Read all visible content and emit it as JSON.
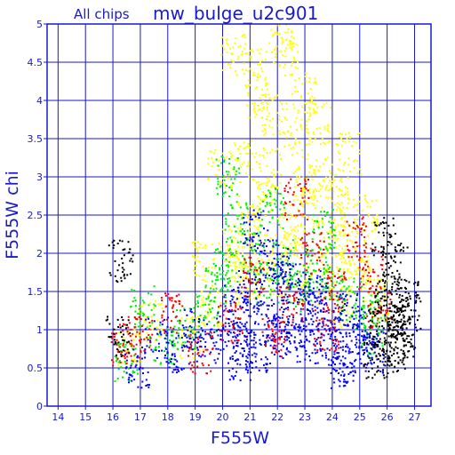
{
  "header": {
    "subtitle": "All chips",
    "title": "mw_bulge_u2c901"
  },
  "chart_data": {
    "type": "scatter",
    "xlabel": "F555W",
    "ylabel": "F555W chi",
    "xlim": [
      13.6,
      27.6
    ],
    "ylim": [
      0,
      5
    ],
    "x_ticks": [
      14,
      15,
      16,
      17,
      18,
      19,
      20,
      21,
      22,
      23,
      24,
      25,
      26,
      27
    ],
    "y_ticks": [
      0,
      0.5,
      1,
      1.5,
      2,
      2.5,
      3,
      3.5,
      4,
      4.5,
      5
    ],
    "x_tick_labels": [
      "14",
      "15",
      "16",
      "17",
      "18",
      "19",
      "20",
      "21",
      "22",
      "23",
      "24",
      "25",
      "26",
      "27"
    ],
    "y_tick_labels": [
      "0",
      "0.5",
      "1",
      "1.5",
      "2",
      "2.5",
      "3",
      "3.5",
      "4",
      "4.5",
      "5"
    ],
    "grid": true,
    "grid_color": "#1a1acc",
    "frame_color": "#1a1acc",
    "text_color": "#1a1acc",
    "series": [
      {
        "color": "#ffff00",
        "points": [
          [
            20.3,
            2.1
          ],
          [
            20.8,
            3.2
          ],
          [
            21.2,
            4.4
          ],
          [
            21.5,
            2.7
          ],
          [
            21.9,
            3.8
          ],
          [
            22.1,
            4.9
          ],
          [
            22.4,
            2.3
          ],
          [
            22.7,
            3.5
          ],
          [
            23.0,
            4.1
          ],
          [
            23.3,
            2.6
          ],
          [
            23.6,
            3.0
          ],
          [
            23.9,
            2.2
          ],
          [
            24.2,
            2.8
          ],
          [
            24.5,
            2.4
          ],
          [
            24.8,
            2.0
          ],
          [
            21.0,
            2.5
          ],
          [
            21.7,
            3.1
          ],
          [
            22.3,
            4.6
          ],
          [
            22.9,
            2.9
          ],
          [
            23.5,
            3.7
          ],
          [
            20.6,
            1.9
          ],
          [
            21.4,
            2.0
          ],
          [
            22.6,
            2.1
          ],
          [
            24.0,
            1.8
          ],
          [
            25.0,
            1.7
          ],
          [
            19.6,
            1.3
          ],
          [
            18.9,
            0.9
          ],
          [
            17.4,
            1.1
          ],
          [
            16.6,
            0.8
          ],
          [
            24.6,
            3.3
          ],
          [
            25.2,
            2.5
          ],
          [
            21.3,
            4.0
          ],
          [
            20.4,
            4.6
          ],
          [
            19.9,
            3.1
          ],
          [
            25.6,
            1.4
          ],
          [
            23.1,
            1.6
          ],
          [
            22.0,
            1.7
          ],
          [
            24.3,
            1.3
          ],
          [
            20.9,
            1.6
          ],
          [
            19.3,
            1.9
          ]
        ]
      },
      {
        "color": "#00ee00",
        "points": [
          [
            20.1,
            1.8
          ],
          [
            20.5,
            2.4
          ],
          [
            21.1,
            2.0
          ],
          [
            21.6,
            1.6
          ],
          [
            22.2,
            1.9
          ],
          [
            22.8,
            1.5
          ],
          [
            23.4,
            1.8
          ],
          [
            24.1,
            1.6
          ],
          [
            24.7,
            1.4
          ],
          [
            25.3,
            1.2
          ],
          [
            19.4,
            1.2
          ],
          [
            18.6,
            1.0
          ],
          [
            17.8,
            0.8
          ],
          [
            17.1,
            1.3
          ],
          [
            16.5,
            0.6
          ],
          [
            20.2,
            3.0
          ],
          [
            21.8,
            2.6
          ],
          [
            23.7,
            2.3
          ],
          [
            19.8,
            1.6
          ],
          [
            25.5,
            0.9
          ]
        ]
      },
      {
        "color": "#0000ff",
        "points": [
          [
            20.2,
            1.0
          ],
          [
            20.5,
            1.3
          ],
          [
            20.8,
            0.8
          ],
          [
            21.0,
            1.5
          ],
          [
            21.3,
            1.1
          ],
          [
            21.5,
            0.7
          ],
          [
            21.8,
            1.9
          ],
          [
            22.0,
            1.2
          ],
          [
            22.3,
            0.9
          ],
          [
            22.6,
            1.6
          ],
          [
            22.8,
            1.0
          ],
          [
            23.1,
            0.8
          ],
          [
            23.4,
            1.4
          ],
          [
            23.7,
            1.1
          ],
          [
            24.0,
            0.9
          ],
          [
            24.3,
            0.7
          ],
          [
            24.6,
            1.2
          ],
          [
            24.9,
            0.8
          ],
          [
            25.2,
            1.0
          ],
          [
            25.5,
            0.7
          ],
          [
            19.5,
            0.8
          ],
          [
            19.0,
            1.0
          ],
          [
            18.4,
            0.7
          ],
          [
            17.6,
            0.9
          ],
          [
            16.9,
            0.5
          ],
          [
            21.2,
            2.3
          ],
          [
            22.1,
            1.8
          ],
          [
            23.2,
            1.5
          ],
          [
            20.6,
            0.6
          ],
          [
            24.4,
            0.5
          ]
        ]
      },
      {
        "color": "#ff0000",
        "points": [
          [
            20.3,
            1.1
          ],
          [
            21.1,
            1.7
          ],
          [
            21.9,
            0.9
          ],
          [
            22.5,
            1.3
          ],
          [
            23.3,
            2.0
          ],
          [
            24.1,
            1.5
          ],
          [
            24.8,
            2.2
          ],
          [
            25.4,
            1.8
          ],
          [
            19.2,
            0.7
          ],
          [
            18.2,
            1.2
          ],
          [
            17.0,
            0.9
          ],
          [
            16.3,
            0.8
          ],
          [
            22.7,
            2.7
          ],
          [
            23.8,
            1.0
          ],
          [
            25.7,
            1.3
          ]
        ]
      },
      {
        "color": "#000000",
        "points": [
          [
            25.8,
            1.0
          ],
          [
            26.0,
            1.3
          ],
          [
            26.2,
            0.8
          ],
          [
            26.4,
            1.1
          ],
          [
            26.6,
            0.9
          ],
          [
            26.8,
            1.2
          ],
          [
            26.1,
            1.5
          ],
          [
            26.5,
            0.7
          ],
          [
            25.9,
            2.2
          ],
          [
            26.3,
            1.9
          ],
          [
            16.3,
            1.9
          ],
          [
            16.2,
            0.9
          ],
          [
            25.6,
            0.6
          ],
          [
            26.7,
            1.4
          ]
        ]
      }
    ]
  }
}
